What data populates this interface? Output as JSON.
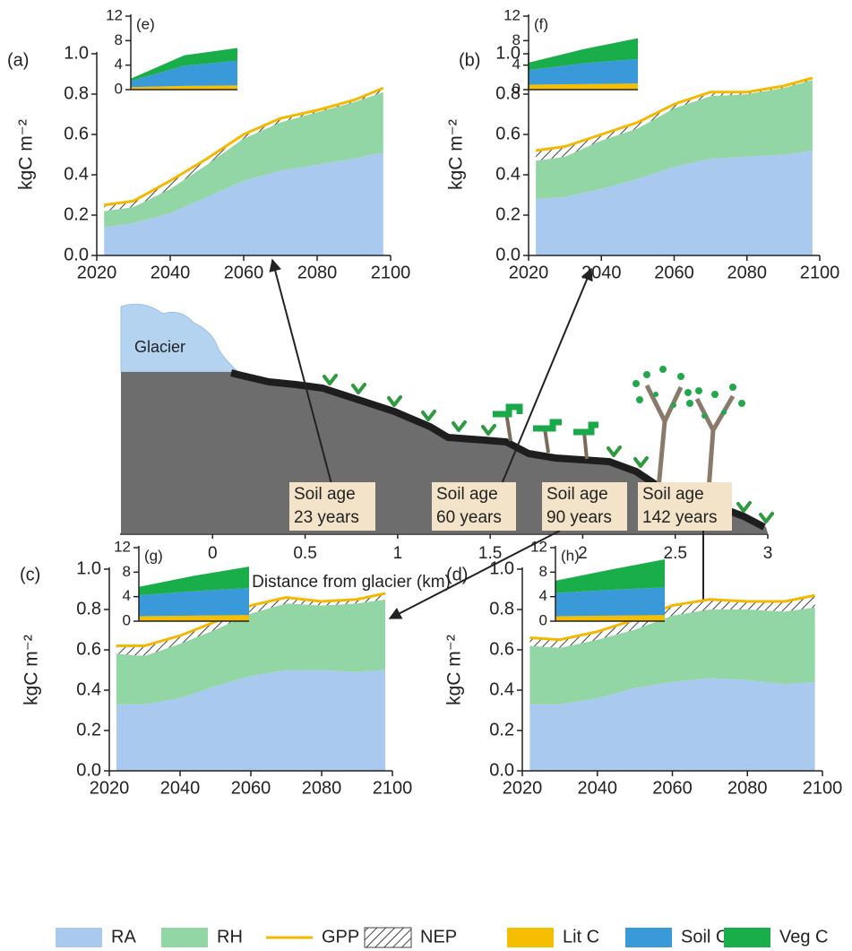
{
  "chart_data": [
    {
      "type": "area",
      "label": "(a)",
      "ylabel": "kgC m⁻²",
      "x": [
        2022,
        2030,
        2040,
        2050,
        2060,
        2070,
        2080,
        2090,
        2098
      ],
      "xlim": [
        2020,
        2100
      ],
      "xticks": [
        2020,
        2040,
        2060,
        2080,
        2100
      ],
      "ylim": [
        0,
        1
      ],
      "yticks": [
        {
          "value": 0,
          "label": "0.0"
        },
        0.2,
        0.4,
        0.6,
        0.8,
        {
          "value": 1,
          "label": "1.0"
        }
      ],
      "series": [
        {
          "name": "RA",
          "color": "#a9c9ef",
          "style": "area",
          "values": [
            0.14,
            0.16,
            0.21,
            0.29,
            0.37,
            0.42,
            0.45,
            0.48,
            0.51
          ]
        },
        {
          "name": "RH",
          "color": "#93d6a6",
          "style": "area",
          "values": [
            0.08,
            0.08,
            0.12,
            0.16,
            0.21,
            0.24,
            0.26,
            0.28,
            0.3
          ]
        },
        {
          "name": "GPP",
          "color": "#f5b800",
          "style": "line",
          "values": [
            0.25,
            0.27,
            0.37,
            0.48,
            0.6,
            0.68,
            0.72,
            0.77,
            0.83
          ]
        },
        {
          "name": "NEP",
          "color": "#444444",
          "style": "hatch",
          "values": [
            0.03,
            0.03,
            0.04,
            0.03,
            0.02,
            0.02,
            0.01,
            0.01,
            0.02
          ]
        }
      ]
    },
    {
      "type": "area",
      "label": "(b)",
      "ylabel": "kgC m⁻²",
      "x": [
        2022,
        2030,
        2040,
        2050,
        2060,
        2070,
        2080,
        2090,
        2098
      ],
      "xlim": [
        2020,
        2100
      ],
      "xticks": [
        2020,
        2040,
        2060,
        2080,
        2100
      ],
      "ylim": [
        0,
        1
      ],
      "yticks": [
        {
          "value": 0,
          "label": "0.0"
        },
        0.2,
        0.4,
        0.6,
        0.8,
        {
          "value": 1,
          "label": "1.0"
        }
      ],
      "series": [
        {
          "values": [
            0.28,
            0.29,
            0.33,
            0.38,
            0.44,
            0.48,
            0.49,
            0.5,
            0.52
          ]
        },
        {
          "values": [
            0.19,
            0.2,
            0.24,
            0.25,
            0.29,
            0.31,
            0.31,
            0.33,
            0.35
          ]
        },
        {
          "values": [
            0.52,
            0.54,
            0.6,
            0.66,
            0.75,
            0.81,
            0.81,
            0.84,
            0.88
          ]
        },
        {
          "values": [
            0.05,
            0.05,
            0.03,
            0.03,
            0.02,
            0.02,
            0.01,
            0.01,
            0.01
          ]
        }
      ]
    },
    {
      "type": "area",
      "label": "(c)",
      "ylabel": "kgC m⁻²",
      "x": [
        2022,
        2030,
        2040,
        2050,
        2060,
        2070,
        2080,
        2090,
        2098
      ],
      "xlim": [
        2020,
        2100
      ],
      "xticks": [
        2020,
        2040,
        2060,
        2080,
        2100
      ],
      "ylim": [
        0,
        1
      ],
      "yticks": [
        {
          "value": 0,
          "label": "0.0"
        },
        0.2,
        0.4,
        0.6,
        0.8,
        {
          "value": 1,
          "label": "1.0"
        }
      ],
      "series": [
        {
          "values": [
            0.33,
            0.33,
            0.36,
            0.42,
            0.47,
            0.5,
            0.5,
            0.49,
            0.5
          ]
        },
        {
          "values": [
            0.25,
            0.24,
            0.27,
            0.28,
            0.31,
            0.33,
            0.32,
            0.34,
            0.35
          ]
        },
        {
          "values": [
            0.62,
            0.62,
            0.67,
            0.74,
            0.82,
            0.86,
            0.84,
            0.85,
            0.88
          ]
        },
        {
          "values": [
            0.04,
            0.05,
            0.04,
            0.04,
            0.04,
            0.03,
            0.02,
            0.02,
            0.03
          ]
        }
      ]
    },
    {
      "type": "area",
      "label": "(d)",
      "ylabel": "kgC m⁻²",
      "x": [
        2022,
        2030,
        2040,
        2050,
        2060,
        2070,
        2080,
        2090,
        2098
      ],
      "xlim": [
        2020,
        2100
      ],
      "xticks": [
        2020,
        2040,
        2060,
        2080,
        2100
      ],
      "ylim": [
        0,
        1
      ],
      "yticks": [
        {
          "value": 0,
          "label": "0.0"
        },
        0.2,
        0.4,
        0.6,
        0.8,
        {
          "value": 1,
          "label": "1.0"
        }
      ],
      "series": [
        {
          "values": [
            0.33,
            0.33,
            0.36,
            0.41,
            0.44,
            0.46,
            0.45,
            0.43,
            0.44
          ]
        },
        {
          "values": [
            0.29,
            0.28,
            0.29,
            0.29,
            0.33,
            0.34,
            0.35,
            0.36,
            0.37
          ]
        },
        {
          "values": [
            0.66,
            0.65,
            0.69,
            0.75,
            0.82,
            0.85,
            0.84,
            0.84,
            0.87
          ]
        },
        {
          "values": [
            0.04,
            0.04,
            0.04,
            0.05,
            0.05,
            0.05,
            0.04,
            0.05,
            0.06
          ]
        }
      ]
    },
    {
      "type": "area",
      "label": "(e)",
      "x": [
        2022,
        2060,
        2098
      ],
      "xlim": [
        2022,
        2098
      ],
      "ylim": [
        0,
        12
      ],
      "yticks": [
        0,
        4,
        8,
        12
      ],
      "series": [
        {
          "name": "Lit C",
          "color": "#f5be00",
          "style": "area",
          "values": [
            0.4,
            0.6,
            0.7
          ]
        },
        {
          "name": "Soil C",
          "color": "#3a9ad9",
          "style": "area",
          "values": [
            1.0,
            3.3,
            4.0
          ]
        },
        {
          "name": "Veg C",
          "color": "#1aae4a",
          "style": "area",
          "values": [
            0.4,
            1.7,
            2.1
          ]
        }
      ]
    },
    {
      "type": "area",
      "label": "(f)",
      "x": [
        2022,
        2060,
        2098
      ],
      "xlim": [
        2022,
        2098
      ],
      "ylim": [
        0,
        12
      ],
      "yticks": [
        0,
        4,
        8,
        12
      ],
      "series": [
        {
          "values": [
            0.8,
            0.9,
            1.0
          ]
        },
        {
          "values": [
            2.4,
            3.4,
            4.0
          ]
        },
        {
          "values": [
            1.2,
            2.3,
            3.4
          ]
        }
      ]
    },
    {
      "type": "area",
      "label": "(g)",
      "x": [
        2022,
        2060,
        2098
      ],
      "xlim": [
        2022,
        2098
      ],
      "ylim": [
        0,
        12
      ],
      "yticks": [
        0,
        4,
        8,
        12
      ],
      "series": [
        {
          "values": [
            0.8,
            0.9,
            1.0
          ]
        },
        {
          "values": [
            3.4,
            4.0,
            4.4
          ]
        },
        {
          "values": [
            1.4,
            2.5,
            3.5
          ]
        }
      ]
    },
    {
      "type": "area",
      "label": "(h)",
      "x": [
        2022,
        2060,
        2098
      ],
      "xlim": [
        2022,
        2098
      ],
      "ylim": [
        0,
        12
      ],
      "yticks": [
        0,
        4,
        8,
        12
      ],
      "series": [
        {
          "values": [
            0.8,
            0.9,
            1.0
          ]
        },
        {
          "values": [
            3.8,
            4.2,
            4.5
          ]
        },
        {
          "values": [
            2.0,
            3.3,
            4.6
          ]
        }
      ]
    },
    {
      "type": "profile",
      "xlabel": "Distance from glacier (km)",
      "glacier_label": "Glacier",
      "xlim": [
        -0.5,
        3
      ],
      "xticks": [
        0,
        0.5,
        1,
        1.5,
        2,
        2.5,
        3
      ],
      "sites": [
        [
          "Soil age",
          "23 years"
        ],
        [
          "Soil age",
          "60 years"
        ],
        [
          "Soil age",
          "90 years"
        ],
        [
          "Soil age",
          "142 years"
        ]
      ]
    }
  ]
}
